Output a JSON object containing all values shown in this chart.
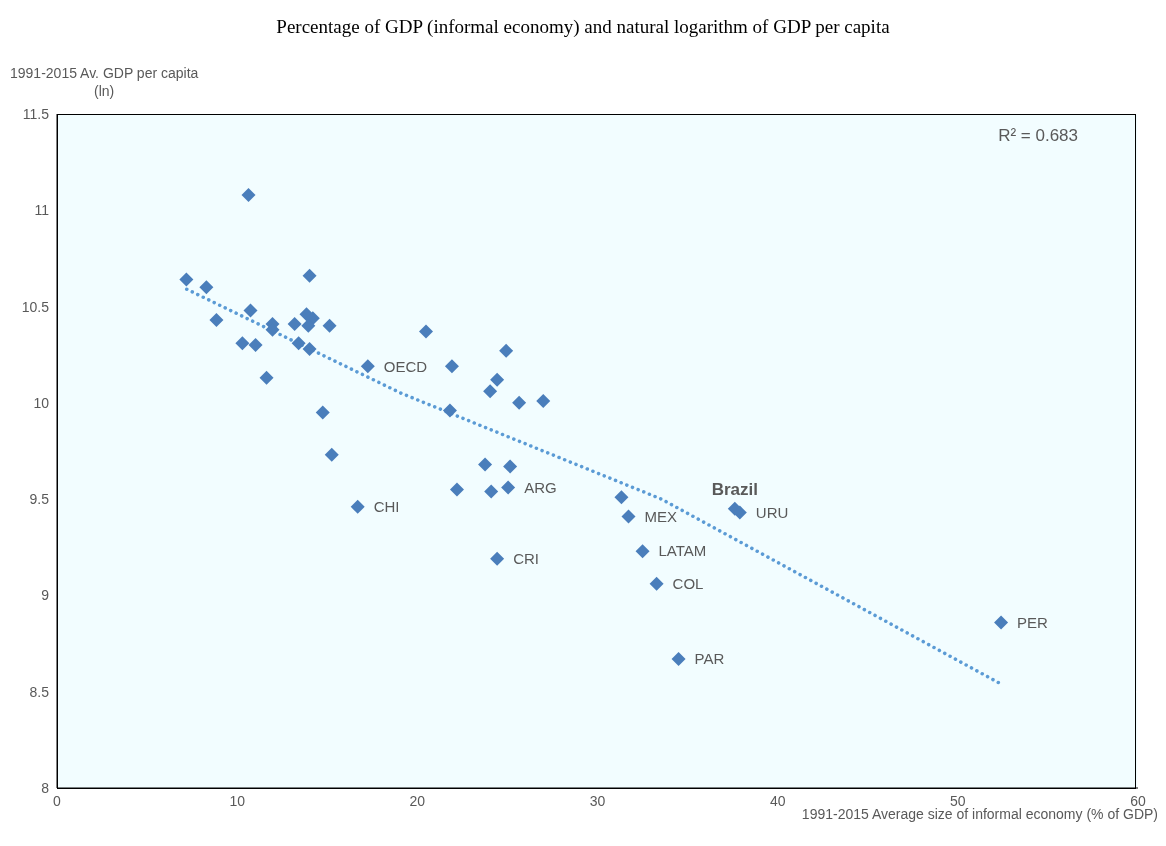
{
  "chart_data": {
    "type": "scatter",
    "title": "Percentage of GDP (informal economy) and natural logarithm of GDP per capita",
    "xlabel": "1991-2015 Average size of informal economy (% of GDP)",
    "ylabel": "1991-2015 Av. GDP per capita\n(ln)",
    "series": [
      {
        "color": "#4a7ebb",
        "marker": "diamond",
        "x": [
          7.18,
          8.29,
          8.85,
          10.63,
          10.29,
          10.74,
          11.02,
          11.63,
          11.96,
          11.96,
          13.19,
          13.41,
          13.85,
          14.2,
          13.95,
          14.02,
          14.02,
          15.13,
          14.75,
          15.25,
          17.25,
          20.48,
          21.81,
          21.92,
          24.93,
          24.43,
          24.04,
          25.65,
          26.99,
          23.76,
          25.15,
          22.2,
          24.1,
          25.04,
          16.69,
          24.43,
          31.33,
          31.72,
          32.5,
          33.28,
          34.5,
          37.62,
          37.9,
          52.4
        ],
        "values": [
          10.64,
          10.6,
          10.43,
          11.08,
          10.31,
          10.48,
          10.3,
          10.13,
          10.41,
          10.38,
          10.41,
          10.31,
          10.46,
          10.44,
          10.4,
          10.66,
          10.28,
          10.4,
          9.95,
          9.73,
          10.19,
          10.37,
          9.96,
          10.19,
          10.27,
          10.12,
          10.06,
          10.0,
          10.01,
          9.68,
          9.67,
          9.55,
          9.54,
          9.56,
          9.46,
          9.19,
          9.51,
          9.41,
          9.23,
          9.06,
          8.67,
          9.45,
          9.43,
          8.86
        ]
      },
      {
        "type": "line",
        "color": "#5b9bd5",
        "line_style": "dotted",
        "marker": "none",
        "x": [
          7.2,
          19.1,
          33.55,
          52.4
        ],
        "values": [
          10.59,
          10.05,
          9.5,
          8.54
        ]
      }
    ],
    "annotations": [
      {
        "text": "OECD",
        "x": 17.25,
        "y": 10.19
      },
      {
        "text": "CHI",
        "x": 16.69,
        "y": 9.46
      },
      {
        "text": "ARG",
        "x": 25.04,
        "y": 9.56
      },
      {
        "text": "CRI",
        "x": 24.43,
        "y": 9.19
      },
      {
        "text": "MEX",
        "x": 31.72,
        "y": 9.41
      },
      {
        "text": "LATAM",
        "x": 32.5,
        "y": 9.23
      },
      {
        "text": "COL",
        "x": 33.28,
        "y": 9.06
      },
      {
        "text": "PAR",
        "x": 34.5,
        "y": 8.67
      },
      {
        "text": "Brazil",
        "x": 37.62,
        "y": 9.45
      },
      {
        "text": "URU",
        "x": 37.9,
        "y": 9.43
      },
      {
        "text": "PER",
        "x": 52.4,
        "y": 8.86
      },
      "R² = 0.683"
    ],
    "xlim": [
      0,
      60
    ],
    "xticks": [
      0,
      10,
      20,
      30,
      40,
      50,
      60
    ],
    "ylim": [
      8,
      11.5
    ],
    "yticks": [
      8,
      8.5,
      9,
      9.5,
      10,
      10.5,
      11,
      11.5
    ],
    "grid": true,
    "legend": false
  }
}
